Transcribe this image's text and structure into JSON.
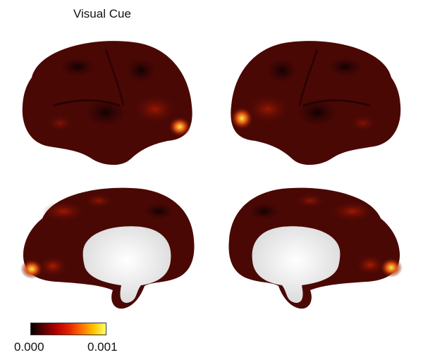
{
  "figure": {
    "title": "Visual Cue",
    "colorbar": {
      "min_label": "0.000",
      "max_label": "0.001",
      "min": 0.0,
      "max": 0.001,
      "colormap": [
        "#000000",
        "#5a0000",
        "#b00000",
        "#e02000",
        "#ff6a00",
        "#ffc000",
        "#ffff60"
      ]
    },
    "views": [
      "left-lateral",
      "right-lateral",
      "left-medial",
      "right-medial"
    ],
    "colors": {
      "cortex_base": "#3a0606",
      "cortex_mid": "#5c0b04",
      "hot": "#d02000",
      "peak": "#f2e640",
      "medial_wall": "#f2f2f2"
    }
  }
}
